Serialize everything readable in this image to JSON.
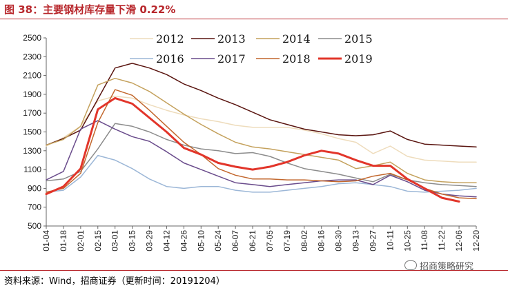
{
  "title": "图 38：主要钢材库存量下滑 0.22%",
  "source": "资料来源：Wind，招商证券（更新时间：20191204）",
  "watermark": "招商策略研究",
  "chart_data": {
    "type": "line",
    "categories": [
      "01-04",
      "01-18",
      "02-01",
      "02-15",
      "03-01",
      "03-15",
      "03-29",
      "04-12",
      "04-26",
      "05-10",
      "05-24",
      "06-07",
      "06-21",
      "07-05",
      "07-19",
      "08-02",
      "08-16",
      "08-30",
      "09-13",
      "09-27",
      "10-11",
      "10-25",
      "11-08",
      "11-22",
      "12-06",
      "12-20"
    ],
    "ylim": [
      500,
      2500
    ],
    "yticks": [
      500,
      700,
      900,
      1100,
      1300,
      1500,
      1700,
      1900,
      2100,
      2300,
      2500
    ],
    "legend_position": "top",
    "series": [
      {
        "name": "2012",
        "color": "#eedcbc",
        "width": 1.5,
        "values": [
          1350,
          1440,
          1560,
          1830,
          1880,
          1860,
          1790,
          1730,
          1680,
          1640,
          1610,
          1570,
          1550,
          1550,
          1550,
          1520,
          1480,
          1430,
          1390,
          1270,
          1350,
          1240,
          1200,
          1190,
          1180,
          1180
        ]
      },
      {
        "name": "2013",
        "color": "#5a1510",
        "width": 1.5,
        "values": [
          1360,
          1430,
          1520,
          1850,
          2180,
          2230,
          2180,
          2110,
          2010,
          1940,
          1860,
          1790,
          1710,
          1630,
          1580,
          1530,
          1500,
          1470,
          1460,
          1470,
          1510,
          1420,
          1370,
          1360,
          1350,
          1340
        ]
      },
      {
        "name": "2014",
        "color": "#c4a15c",
        "width": 1.5,
        "values": [
          1360,
          1420,
          1560,
          2000,
          2070,
          2020,
          1930,
          1810,
          1690,
          1580,
          1480,
          1390,
          1340,
          1320,
          1290,
          1260,
          1230,
          1200,
          1110,
          1140,
          1180,
          1060,
          990,
          970,
          960,
          960
        ]
      },
      {
        "name": "2015",
        "color": "#8c8c8c",
        "width": 1.5,
        "values": [
          980,
          1000,
          1080,
          1320,
          1590,
          1560,
          1500,
          1420,
          1360,
          1320,
          1300,
          1270,
          1280,
          1240,
          1170,
          1110,
          1080,
          1050,
          1010,
          970,
          1050,
          990,
          960,
          940,
          930,
          920
        ]
      },
      {
        "name": "2016",
        "color": "#9cb7d7",
        "width": 1.5,
        "values": [
          860,
          880,
          1020,
          1250,
          1200,
          1110,
          1000,
          920,
          900,
          920,
          920,
          880,
          860,
          860,
          880,
          900,
          920,
          950,
          960,
          940,
          920,
          870,
          860,
          870,
          880,
          900
        ]
      },
      {
        "name": "2017",
        "color": "#6a4c8c",
        "width": 1.5,
        "values": [
          990,
          1080,
          1530,
          1620,
          1530,
          1450,
          1400,
          1290,
          1170,
          1100,
          1030,
          960,
          940,
          920,
          940,
          960,
          980,
          990,
          990,
          940,
          1040,
          970,
          880,
          840,
          820,
          810
        ]
      },
      {
        "name": "2018",
        "color": "#c2672d",
        "width": 1.5,
        "values": [
          860,
          900,
          1060,
          1600,
          1950,
          1890,
          1730,
          1560,
          1390,
          1260,
          1110,
          1040,
          1000,
          1000,
          990,
          990,
          980,
          970,
          980,
          1030,
          1060,
          990,
          900,
          840,
          800,
          790
        ]
      },
      {
        "name": "2019",
        "color": "#e2352a",
        "width": 3,
        "values": [
          840,
          920,
          1110,
          1740,
          1860,
          1800,
          1650,
          1500,
          1330,
          1260,
          1170,
          1130,
          1100,
          1130,
          1180,
          1250,
          1300,
          1270,
          1200,
          1140,
          1140,
          1000,
          900,
          800,
          760,
          null
        ]
      }
    ]
  }
}
